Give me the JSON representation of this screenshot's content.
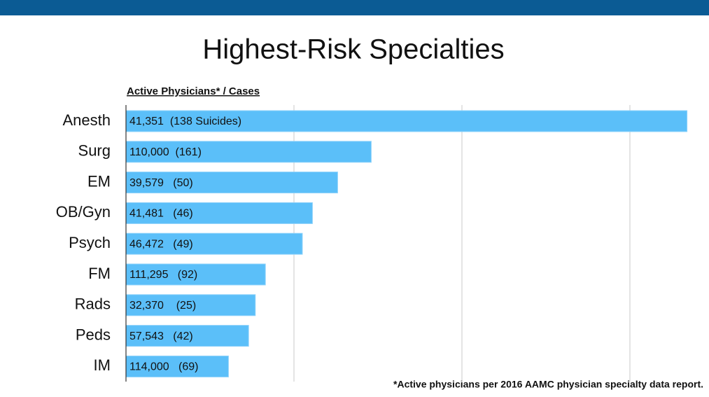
{
  "chart_data": {
    "type": "bar",
    "orientation": "horizontal",
    "title": "Highest-Risk Specialties",
    "subtitle": "Active Physicians* / Cases",
    "footnote": "*Active physicians per 2016 AAMC physician specialty data report.",
    "categories": [
      "Anesth",
      "Surg",
      "EM",
      "OB/Gyn",
      "Psych",
      "FM",
      "Rads",
      "Peds",
      "IM"
    ],
    "values": [
      3.34,
      1.46,
      1.26,
      1.11,
      1.05,
      0.83,
      0.77,
      0.73,
      0.61
    ],
    "annotations": [
      "41,351  (138 Suicides)",
      "110,000  (161)",
      "39,579   (50)",
      "41,481   (46)",
      "46,472   (49)",
      "111,295   (92)",
      "32,370    (25)",
      "57,543   (42)",
      "114,000   (69)"
    ],
    "color": "#5bbff9",
    "xlim": [
      0,
      3.4
    ],
    "xticks": [
      1,
      2,
      3
    ],
    "grid": true
  }
}
